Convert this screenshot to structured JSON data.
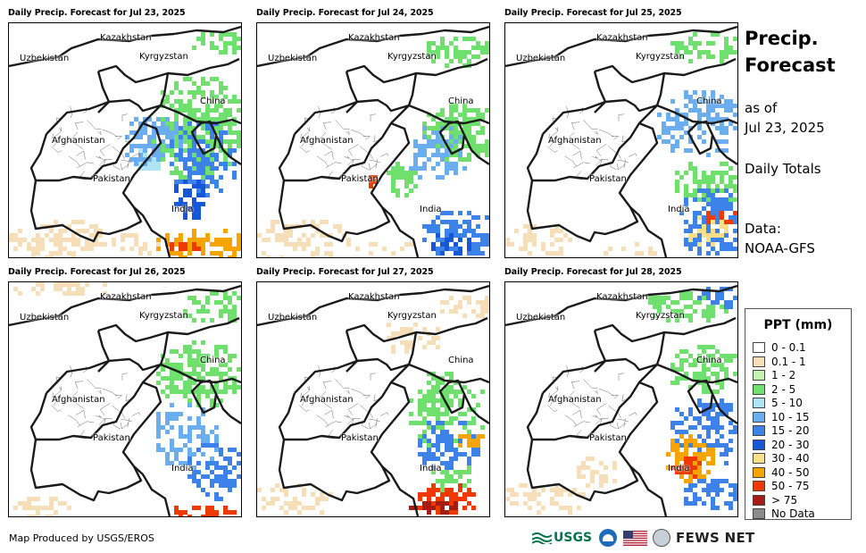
{
  "panels": [
    {
      "title": "Daily Precip. Forecast for Jul 23, 2025"
    },
    {
      "title": "Daily Precip. Forecast for Jul 24, 2025"
    },
    {
      "title": "Daily Precip. Forecast for Jul 25, 2025"
    },
    {
      "title": "Daily Precip. Forecast for Jul 26, 2025"
    },
    {
      "title": "Daily Precip. Forecast for Jul 27, 2025"
    },
    {
      "title": "Daily Precip. Forecast for Jul 28, 2025"
    }
  ],
  "map_labels": {
    "kazakhstan": "Kazakhstan",
    "uzbekistan": "Uzbekistan",
    "kyrgyzstan": "Kyrgyzstan",
    "china": "China",
    "afghanistan": "Afghanistan",
    "pakistan": "Pakistan",
    "india": "India"
  },
  "side": {
    "title": "Precip. Forecast",
    "as_of": "as of",
    "date": "Jul 23, 2025",
    "totals": "Daily Totals",
    "data_label": "Data:",
    "data_source": "NOAA-GFS"
  },
  "legend": {
    "title": "PPT (mm)",
    "items": [
      {
        "label": "0 - 0.1",
        "color": "#ffffff"
      },
      {
        "label": "0.1 - 1",
        "color": "#f5deb8"
      },
      {
        "label": "1 - 2",
        "color": "#c4f2b2"
      },
      {
        "label": "2 - 5",
        "color": "#6fe06d"
      },
      {
        "label": "5 - 10",
        "color": "#aee4f5"
      },
      {
        "label": "10 - 15",
        "color": "#6aaef0"
      },
      {
        "label": "15 - 20",
        "color": "#3d82e8"
      },
      {
        "label": "20 - 30",
        "color": "#1656d8"
      },
      {
        "label": "30 - 40",
        "color": "#f8e08a"
      },
      {
        "label": "40 - 50",
        "color": "#f7a400"
      },
      {
        "label": "50 - 75",
        "color": "#ee3a00"
      },
      {
        "label": "> 75",
        "color": "#a51c14"
      },
      {
        "label": "No Data",
        "color": "#8c8c8c"
      }
    ]
  },
  "footer": {
    "credit": "Map Produced by USGS/EROS",
    "usgs": "USGS",
    "fews": "FEWS NET"
  }
}
